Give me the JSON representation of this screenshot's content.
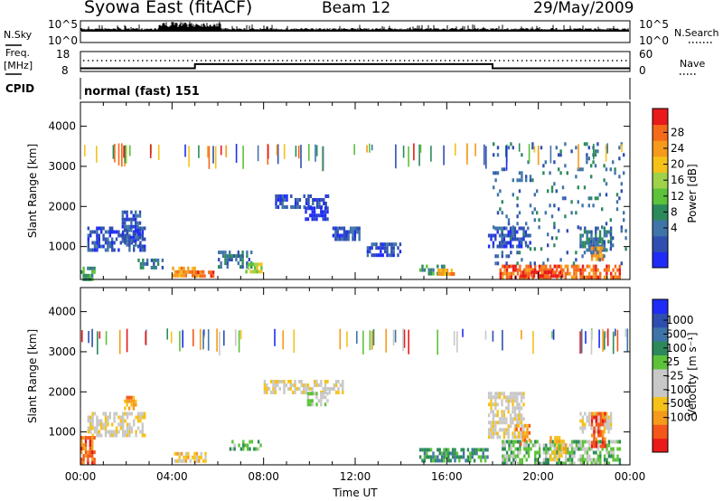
{
  "header": {
    "station": "Syowa East (fitACF)",
    "beam": "Beam 12",
    "date": "29/May/2009"
  },
  "side_labels": {
    "nsky": "N.Sky",
    "freq_line1": "Freq.",
    "freq_line2": "[MHz]",
    "cpid": "CPID",
    "nsearch": "N.Search",
    "nave": "Nave"
  },
  "cpid_text": "normal (fast) 151",
  "colors": {
    "power": [
      "#1f2cf5",
      "#2f4fb0",
      "#3f74a8",
      "#2c8a5a",
      "#5cc23a",
      "#9fd24a",
      "#f5c21a",
      "#f59a1a",
      "#f56a1a",
      "#e81a1a"
    ],
    "velocity": [
      "#e81a1a",
      "#f5561a",
      "#f59a1a",
      "#f5c21a",
      "#c8c8c8",
      "#c8c8c8",
      "#5cc23a",
      "#2c8a5a",
      "#3f74a8",
      "#2f4fb0",
      "#1f2cf5"
    ]
  },
  "chart_data": [
    {
      "type": "line",
      "name": "status-panel",
      "left_axis_labels": [
        "10^5",
        "10^0"
      ],
      "right_axis_labels": [
        "10^5",
        "10^0"
      ]
    },
    {
      "type": "line",
      "name": "frequency-panel",
      "left_ticks": [
        18,
        8
      ],
      "right_ticks": [
        60,
        0
      ],
      "freq_steps": [
        {
          "t": 0,
          "mhz": 9.6
        },
        {
          "t": 5.0,
          "mhz": 11.7
        },
        {
          "t": 18.0,
          "mhz": 9.6
        },
        {
          "t": 24,
          "mhz": 9.6
        }
      ]
    },
    {
      "type": "heatmap",
      "name": "power",
      "ylabel": "Slant Range [km]",
      "xlim": [
        0,
        24
      ],
      "ylim": [
        180,
        4600
      ],
      "yticks": [
        1000,
        2000,
        3000,
        4000
      ],
      "colorbar_title": "Power [dB]",
      "colorbar_ticks": [
        "4",
        "8",
        "12",
        "16",
        "20",
        "24",
        "28"
      ],
      "colorbar_levels": 10,
      "regions": [
        {
          "t0": 0.3,
          "t1": 2.8,
          "r0": 900,
          "r1": 1500,
          "lvl": 1
        },
        {
          "t0": 0.0,
          "t1": 0.6,
          "r0": 180,
          "r1": 500,
          "lvl": 3
        },
        {
          "t0": 1.8,
          "t1": 2.6,
          "r0": 1000,
          "r1": 1900,
          "lvl": 1
        },
        {
          "t0": 2.5,
          "t1": 3.6,
          "r0": 450,
          "r1": 700,
          "lvl": 2
        },
        {
          "t0": 4.0,
          "t1": 5.4,
          "r0": 300,
          "r1": 500,
          "lvl": 7
        },
        {
          "t0": 5.0,
          "t1": 5.8,
          "r0": 250,
          "r1": 400,
          "lvl": 8
        },
        {
          "t0": 6.0,
          "t1": 7.5,
          "r0": 500,
          "r1": 900,
          "lvl": 2
        },
        {
          "t0": 7.2,
          "t1": 7.9,
          "r0": 400,
          "r1": 600,
          "lvl": 5
        },
        {
          "t0": 8.5,
          "t1": 10.8,
          "r0": 2000,
          "r1": 2300,
          "lvl": 1
        },
        {
          "t0": 9.8,
          "t1": 10.8,
          "r0": 1700,
          "r1": 2000,
          "lvl": 0
        },
        {
          "t0": 11.0,
          "t1": 12.2,
          "r0": 1200,
          "r1": 1500,
          "lvl": 1
        },
        {
          "t0": 12.5,
          "t1": 14.0,
          "r0": 800,
          "r1": 1100,
          "lvl": 1
        },
        {
          "t0": 14.8,
          "t1": 15.9,
          "r0": 300,
          "r1": 550,
          "lvl": 3
        },
        {
          "t0": 15.6,
          "t1": 16.3,
          "r0": 300,
          "r1": 450,
          "lvl": 7
        },
        {
          "t0": 18.3,
          "t1": 23.6,
          "r0": 250,
          "r1": 550,
          "lvl": 8
        },
        {
          "t0": 19.2,
          "t1": 21.0,
          "r0": 250,
          "r1": 400,
          "lvl": 9
        },
        {
          "t0": 17.8,
          "t1": 19.6,
          "r0": 1000,
          "r1": 1500,
          "lvl": 1
        },
        {
          "t0": 21.8,
          "t1": 23.2,
          "r0": 950,
          "r1": 1500,
          "lvl": 2
        },
        {
          "t0": 22.3,
          "t1": 22.8,
          "r0": 650,
          "r1": 1000,
          "lvl": 7
        },
        {
          "t0": 18.0,
          "t1": 23.8,
          "r0": 600,
          "r1": 3600,
          "lvl": 2
        }
      ]
    },
    {
      "type": "heatmap",
      "name": "velocity",
      "xlabel": "Time UT",
      "ylabel": "Slant Range [km]",
      "xlim": [
        0,
        24
      ],
      "ylim": [
        180,
        4600
      ],
      "xticks": [
        "00:00",
        "04:00",
        "08:00",
        "12:00",
        "16:00",
        "20:00",
        "00:00"
      ],
      "yticks": [
        1000,
        2000,
        3000,
        4000
      ],
      "colorbar_title": "Velocity [m s⁻¹]",
      "colorbar_ticks": [
        "-1000",
        "-500",
        "-100",
        "-25",
        "25",
        "100",
        "500",
        "1000"
      ],
      "colorbar_levels": 11,
      "regions": [
        {
          "t0": 0.3,
          "t1": 2.8,
          "r0": 900,
          "r1": 1500,
          "lvl": 4
        },
        {
          "t0": 0.0,
          "t1": 0.6,
          "r0": 200,
          "r1": 900,
          "lvl": 1
        },
        {
          "t0": 1.9,
          "t1": 2.4,
          "r0": 1600,
          "r1": 1900,
          "lvl": 2
        },
        {
          "t0": 4.0,
          "t1": 5.5,
          "r0": 300,
          "r1": 500,
          "lvl": 3
        },
        {
          "t0": 6.5,
          "t1": 8.0,
          "r0": 550,
          "r1": 800,
          "lvl": 6
        },
        {
          "t0": 8.0,
          "t1": 11.5,
          "r0": 2000,
          "r1": 2300,
          "lvl": 4
        },
        {
          "t0": 9.8,
          "t1": 10.8,
          "r0": 1700,
          "r1": 2000,
          "lvl": 5
        },
        {
          "t0": 14.8,
          "t1": 17.8,
          "r0": 250,
          "r1": 600,
          "lvl": 7
        },
        {
          "t0": 17.8,
          "t1": 19.4,
          "r0": 900,
          "r1": 2000,
          "lvl": 4
        },
        {
          "t0": 18.4,
          "t1": 23.6,
          "r0": 250,
          "r1": 800,
          "lvl": 6
        },
        {
          "t0": 20.5,
          "t1": 21.2,
          "r0": 300,
          "r1": 900,
          "lvl": 3
        },
        {
          "t0": 21.8,
          "t1": 23.2,
          "r0": 1000,
          "r1": 1500,
          "lvl": 4
        },
        {
          "t0": 22.3,
          "t1": 22.9,
          "r0": 650,
          "r1": 1500,
          "lvl": 1
        },
        {
          "t0": 19.0,
          "t1": 19.6,
          "r0": 700,
          "r1": 1200,
          "lvl": 2
        }
      ]
    }
  ]
}
